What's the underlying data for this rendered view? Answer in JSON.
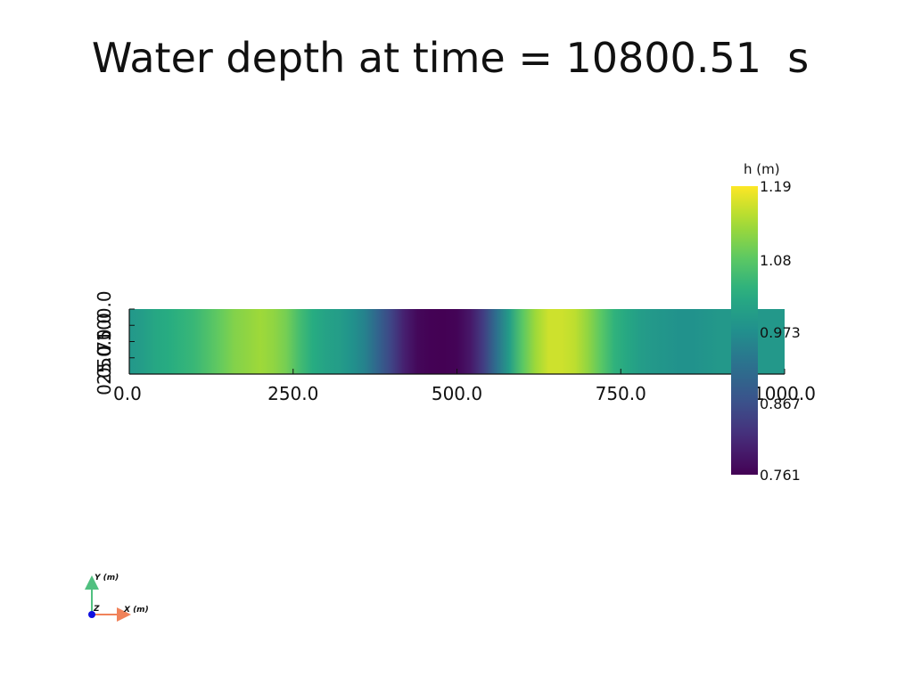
{
  "chart_data": {
    "type": "heatmap",
    "title": "Water depth at time = 10800.51  s",
    "xlabel": "",
    "ylabel": "",
    "xlim": [
      0,
      1000
    ],
    "ylim": [
      0,
      100
    ],
    "x_ticks": [
      "0.0",
      "250.0",
      "500.0",
      "750.0",
      "1000.0"
    ],
    "y_ticks": [
      "0.0",
      "25.0",
      "50.0",
      "75.0",
      "100.0"
    ],
    "colorbar": {
      "title": "h (m)",
      "min": 0.761,
      "max": 1.19,
      "ticks": [
        "1.19",
        "1.08",
        "0.973",
        "0.867",
        "0.761"
      ],
      "colormap": "viridis"
    },
    "profile": {
      "x": [
        0,
        20,
        40,
        60,
        80,
        100,
        120,
        140,
        160,
        180,
        200,
        220,
        240,
        260,
        280,
        300,
        320,
        340,
        360,
        380,
        400,
        420,
        440,
        460,
        480,
        500,
        520,
        540,
        560,
        580,
        600,
        620,
        640,
        660,
        680,
        700,
        720,
        740,
        760,
        780,
        800,
        820,
        840,
        860,
        880,
        900,
        920,
        940,
        960,
        980,
        1000
      ],
      "h": [
        0.99,
        1.0,
        1.02,
        1.03,
        1.04,
        1.05,
        1.07,
        1.09,
        1.11,
        1.12,
        1.13,
        1.12,
        1.1,
        1.06,
        1.03,
        1.01,
        1.0,
        0.98,
        0.95,
        0.9,
        0.85,
        0.8,
        0.77,
        0.762,
        0.761,
        0.765,
        0.79,
        0.84,
        0.92,
        1.0,
        1.08,
        1.13,
        1.16,
        1.16,
        1.15,
        1.12,
        1.08,
        1.04,
        1.02,
        1.0,
        0.99,
        0.985,
        0.98,
        0.98,
        0.985,
        0.99,
        0.99,
        0.99,
        0.99,
        0.99,
        0.99
      ]
    },
    "legend": "right"
  },
  "axes_widget": {
    "y_label": "Y (m)",
    "x_label": "X (m)",
    "z_label": "Z",
    "colors": {
      "x": "#f0825a",
      "y": "#50c080",
      "z": "#1010e0"
    }
  }
}
